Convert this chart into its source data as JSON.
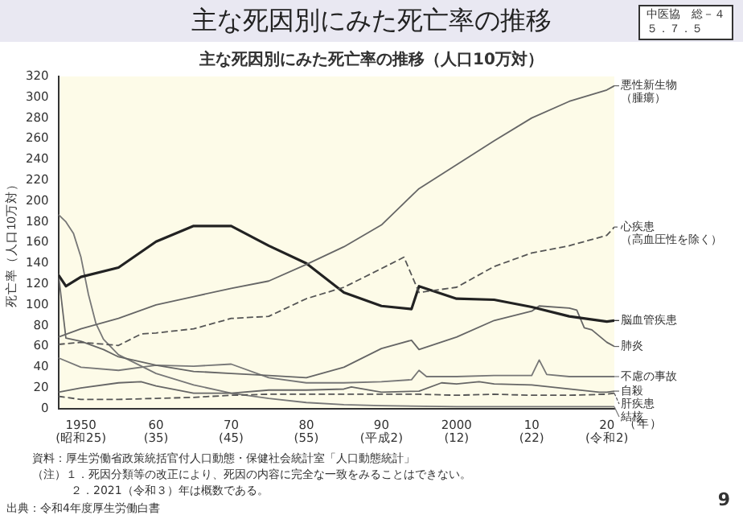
{
  "chart_data": {
    "type": "line",
    "title": "主な死因別にみた死亡率の推移",
    "subtitle": "主な死因別にみた死亡率の推移（人口10万対）",
    "ylabel": "死亡率（人口10万対）",
    "xlabel": "（年）",
    "xlim": [
      1947,
      2021
    ],
    "xticks": [
      1950,
      {
        "value": 1960,
        "label": "60"
      },
      {
        "value": 1970,
        "label": "70"
      },
      {
        "value": 1980,
        "label": "80"
      },
      {
        "value": 1990,
        "label": "90"
      },
      2000,
      {
        "value": 2010,
        "label": "10"
      },
      {
        "value": 2020,
        "label": "20"
      }
    ],
    "ylim": [
      0,
      320
    ],
    "yticks": [
      0,
      20,
      40,
      60,
      80,
      100,
      120,
      140,
      160,
      180,
      200,
      220,
      240,
      260,
      280,
      300,
      320
    ],
    "grid": false,
    "legend": "right",
    "marker": "none",
    "series": [
      {
        "name": "悪性新生物（腫瘍）",
        "color": "#666666",
        "line_style": "solid",
        "x": [
          1947,
          1950,
          1955,
          1960,
          1965,
          1970,
          1975,
          1980,
          1985,
          1990,
          1995,
          2000,
          2005,
          2010,
          2015,
          2020,
          2021
        ],
        "values": [
          69,
          77,
          87,
          100,
          108,
          116,
          123,
          139,
          156,
          177,
          212,
          235,
          258,
          280,
          296,
          307,
          311
        ]
      },
      {
        "name": "心疾患（高血圧性を除く）",
        "color": "#555555",
        "line_style": "dashed",
        "x": [
          1947,
          1950,
          1955,
          1958,
          1960,
          1965,
          1970,
          1975,
          1980,
          1985,
          1990,
          1993,
          1994,
          1995,
          2000,
          2005,
          2010,
          2015,
          2020,
          2021
        ],
        "values": [
          62,
          64,
          61,
          72,
          73,
          77,
          87,
          89,
          106,
          117,
          135,
          146,
          129,
          112,
          117,
          137,
          150,
          157,
          167,
          175
        ]
      },
      {
        "name": "脳血管疾患",
        "color": "#222222",
        "line_style": "solid",
        "x": [
          1947,
          1948,
          1950,
          1955,
          1960,
          1965,
          1970,
          1975,
          1980,
          1985,
          1990,
          1994,
          1995,
          2000,
          2005,
          2010,
          2015,
          2020,
          2021
        ],
        "values": [
          129,
          118,
          127,
          136,
          161,
          176,
          176,
          157,
          140,
          112,
          99,
          96,
          118,
          106,
          105,
          98,
          89,
          84,
          85
        ]
      },
      {
        "name": "肺炎",
        "color": "#666666",
        "line_style": "solid",
        "x": [
          1947,
          1948,
          1950,
          1953,
          1955,
          1960,
          1965,
          1970,
          1975,
          1980,
          1985,
          1990,
          1994,
          1995,
          2000,
          2005,
          2010,
          2011,
          2015,
          2016,
          2017,
          2018,
          2020,
          2021
        ],
        "values": [
          130,
          68,
          65,
          57,
          50,
          42,
          36,
          34,
          32,
          30,
          40,
          58,
          66,
          57,
          69,
          85,
          94,
          99,
          97,
          95,
          78,
          76,
          64,
          60
        ]
      },
      {
        "name": "不慮の事故",
        "color": "#777777",
        "line_style": "solid",
        "x": [
          1947,
          1950,
          1955,
          1960,
          1965,
          1970,
          1975,
          1980,
          1985,
          1990,
          1994,
          1995,
          1996,
          2000,
          2005,
          2010,
          2011,
          2012,
          2015,
          2020,
          2021
        ],
        "values": [
          49,
          40,
          37,
          42,
          41,
          43,
          30,
          25,
          25,
          26,
          28,
          37,
          31,
          31,
          32,
          32,
          47,
          33,
          31,
          31,
          31
        ]
      },
      {
        "name": "自殺",
        "color": "#666666",
        "line_style": "solid",
        "x": [
          1947,
          1950,
          1955,
          1958,
          1960,
          1965,
          1970,
          1975,
          1980,
          1985,
          1986,
          1990,
          1995,
          1998,
          2000,
          2003,
          2005,
          2010,
          2015,
          2019,
          2020,
          2021
        ],
        "values": [
          16,
          20,
          25,
          26,
          22,
          15,
          15,
          18,
          18,
          19,
          21,
          16,
          17,
          25,
          24,
          26,
          24,
          23,
          19,
          16,
          16,
          17
        ]
      },
      {
        "name": "肝疾患",
        "color": "#555555",
        "line_style": "dashed",
        "x": [
          1947,
          1950,
          1955,
          1960,
          1965,
          1970,
          1975,
          1980,
          1985,
          1990,
          1995,
          2000,
          2005,
          2010,
          2015,
          2020,
          2021
        ],
        "values": [
          12,
          9,
          9,
          10,
          11,
          13,
          14,
          14,
          14,
          14,
          14,
          13,
          14,
          13,
          13,
          14,
          15
        ]
      },
      {
        "name": "結核",
        "color": "#777777",
        "line_style": "solid",
        "x": [
          1947,
          1948,
          1949,
          1950,
          1951,
          1952,
          1953,
          1955,
          1960,
          1965,
          1970,
          1975,
          1980,
          1985,
          1990,
          2000,
          2010,
          2021
        ],
        "values": [
          187,
          180,
          169,
          146,
          110,
          82,
          67,
          52,
          34,
          23,
          15,
          10,
          6,
          4,
          3,
          2,
          2,
          2
        ]
      }
    ],
    "annotations": [
      "中医協　総－４５．７．５",
      "(昭和25)",
      "(35)",
      "(45)",
      "(55)",
      "(平成2)",
      "(12)",
      "(22)",
      "(令和2)",
      "資料：厚生労働省政策統括官付人口動態・保健社会統計室「人口動態統計」",
      "（注）１．死因分類等の改正により、死因の内容に完全な一致をみることはできない。",
      "２．2021（令和３）年は概数である。",
      "出典：令和4年度厚生労働白書",
      "9"
    ]
  }
}
